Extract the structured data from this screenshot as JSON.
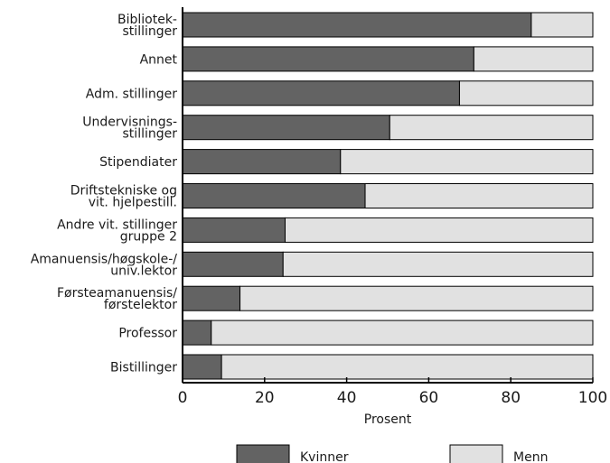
{
  "chart_data": {
    "type": "bar",
    "orientation": "horizontal",
    "stacked": true,
    "categories": [
      [
        "Bibliotek-",
        "stillinger"
      ],
      [
        "Annet"
      ],
      [
        "Adm. stillinger"
      ],
      [
        "Undervisnings-",
        "stillinger"
      ],
      [
        "Stipendiater"
      ],
      [
        "Driftstekniske og",
        "vit. hjelpestill."
      ],
      [
        "Andre vit. stillinger",
        "gruppe 2"
      ],
      [
        "Amanuensis/høgskole-/",
        "univ.lektor"
      ],
      [
        "Førsteamanuensis/",
        "førstelektor"
      ],
      [
        "Professor"
      ],
      [
        "Bistillinger"
      ]
    ],
    "series": [
      {
        "name": "Kvinner",
        "color": "#636363",
        "values": [
          85,
          71,
          67.5,
          50.5,
          38.5,
          44.5,
          25,
          24.5,
          14,
          7,
          9.5
        ]
      },
      {
        "name": "Menn",
        "color": "#e1e1e1",
        "values": [
          15,
          29,
          32.5,
          49.5,
          61.5,
          55.5,
          75,
          75.5,
          86,
          93,
          90.5
        ]
      }
    ],
    "xlabel": "Prosent",
    "xlim": [
      0,
      100
    ],
    "xticks": [
      "0",
      "20",
      "40",
      "60",
      "80",
      "100"
    ],
    "grid": false,
    "legend": "bottom"
  }
}
